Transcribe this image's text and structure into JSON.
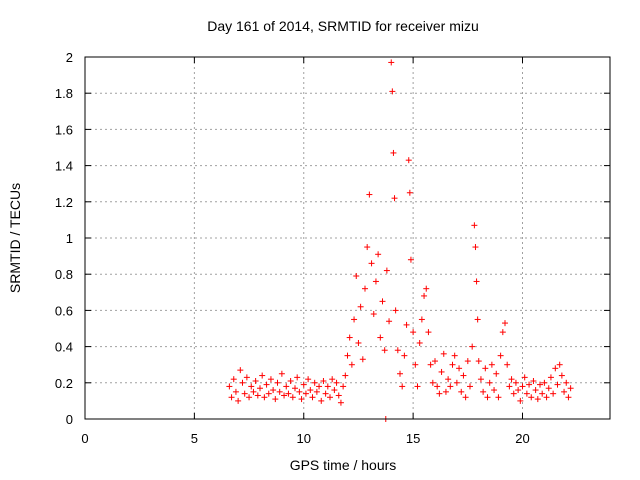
{
  "chart_data": {
    "type": "scatter",
    "title": "Day 161 of 2014, SRMTID for receiver mizu",
    "xlabel": "GPS time / hours",
    "ylabel": "SRMTID / TECUs",
    "xlim": [
      0,
      24
    ],
    "ylim": [
      0,
      2
    ],
    "xticks": [
      0,
      5,
      10,
      15,
      20
    ],
    "xtick_labels": [
      "0",
      "5",
      "10",
      "15",
      "20"
    ],
    "yticks": [
      0,
      0.2,
      0.4,
      0.6,
      0.8,
      1.0,
      1.2,
      1.4,
      1.6,
      1.8,
      2.0
    ],
    "ytick_labels": [
      "0",
      "0.2",
      "0.4",
      "0.6",
      "0.8",
      "1",
      "1.2",
      "1.4",
      "1.6",
      "1.8",
      "2"
    ],
    "grid": true,
    "marker": "+",
    "color": "#ff0000",
    "series": [
      {
        "name": "mizu",
        "points": [
          [
            6.6,
            0.18
          ],
          [
            6.7,
            0.12
          ],
          [
            6.8,
            0.22
          ],
          [
            6.9,
            0.15
          ],
          [
            7.0,
            0.1
          ],
          [
            7.1,
            0.27
          ],
          [
            7.2,
            0.2
          ],
          [
            7.3,
            0.14
          ],
          [
            7.4,
            0.23
          ],
          [
            7.5,
            0.12
          ],
          [
            7.6,
            0.18
          ],
          [
            7.7,
            0.15
          ],
          [
            7.8,
            0.21
          ],
          [
            7.9,
            0.13
          ],
          [
            8.0,
            0.17
          ],
          [
            8.1,
            0.24
          ],
          [
            8.2,
            0.12
          ],
          [
            8.3,
            0.19
          ],
          [
            8.4,
            0.14
          ],
          [
            8.5,
            0.22
          ],
          [
            8.6,
            0.16
          ],
          [
            8.7,
            0.11
          ],
          [
            8.8,
            0.2
          ],
          [
            8.9,
            0.15
          ],
          [
            9.0,
            0.25
          ],
          [
            9.1,
            0.13
          ],
          [
            9.2,
            0.18
          ],
          [
            9.3,
            0.14
          ],
          [
            9.4,
            0.21
          ],
          [
            9.5,
            0.12
          ],
          [
            9.6,
            0.17
          ],
          [
            9.7,
            0.23
          ],
          [
            9.8,
            0.15
          ],
          [
            9.9,
            0.11
          ],
          [
            10.0,
            0.19
          ],
          [
            10.1,
            0.14
          ],
          [
            10.2,
            0.22
          ],
          [
            10.3,
            0.16
          ],
          [
            10.4,
            0.12
          ],
          [
            10.5,
            0.2
          ],
          [
            10.6,
            0.15
          ],
          [
            10.7,
            0.18
          ],
          [
            10.8,
            0.1
          ],
          [
            10.9,
            0.21
          ],
          [
            11.0,
            0.14
          ],
          [
            11.1,
            0.18
          ],
          [
            11.2,
            0.12
          ],
          [
            11.3,
            0.22
          ],
          [
            11.4,
            0.16
          ],
          [
            11.5,
            0.2
          ],
          [
            11.6,
            0.13
          ],
          [
            11.7,
            0.09
          ],
          [
            11.8,
            0.18
          ],
          [
            11.9,
            0.24
          ],
          [
            12.0,
            0.35
          ],
          [
            12.1,
            0.45
          ],
          [
            12.2,
            0.3
          ],
          [
            12.3,
            0.55
          ],
          [
            12.4,
            0.79
          ],
          [
            12.5,
            0.42
          ],
          [
            12.6,
            0.62
          ],
          [
            12.7,
            0.33
          ],
          [
            12.8,
            0.72
          ],
          [
            12.9,
            0.95
          ],
          [
            13.0,
            1.24
          ],
          [
            13.1,
            0.86
          ],
          [
            13.2,
            0.58
          ],
          [
            13.3,
            0.76
          ],
          [
            13.4,
            0.91
          ],
          [
            13.5,
            0.45
          ],
          [
            13.6,
            0.65
          ],
          [
            13.7,
            0.38
          ],
          [
            13.8,
            0.82
          ],
          [
            13.9,
            0.54
          ],
          [
            14.0,
            1.97
          ],
          [
            14.05,
            1.81
          ],
          [
            14.1,
            1.47
          ],
          [
            14.15,
            1.22
          ],
          [
            14.2,
            0.6
          ],
          [
            14.3,
            0.38
          ],
          [
            14.4,
            0.25
          ],
          [
            14.5,
            0.18
          ],
          [
            14.6,
            0.35
          ],
          [
            14.7,
            0.52
          ],
          [
            14.8,
            1.43
          ],
          [
            14.85,
            1.25
          ],
          [
            14.9,
            0.88
          ],
          [
            15.0,
            0.48
          ],
          [
            15.1,
            0.3
          ],
          [
            15.2,
            0.18
          ],
          [
            15.3,
            0.42
          ],
          [
            15.4,
            0.55
          ],
          [
            15.5,
            0.68
          ],
          [
            15.6,
            0.72
          ],
          [
            15.7,
            0.48
          ],
          [
            15.8,
            0.3
          ],
          [
            15.9,
            0.2
          ],
          [
            16.0,
            0.32
          ],
          [
            16.1,
            0.18
          ],
          [
            16.2,
            0.14
          ],
          [
            16.3,
            0.26
          ],
          [
            16.4,
            0.36
          ],
          [
            16.5,
            0.15
          ],
          [
            16.6,
            0.22
          ],
          [
            16.7,
            0.18
          ],
          [
            16.8,
            0.3
          ],
          [
            16.9,
            0.35
          ],
          [
            17.0,
            0.2
          ],
          [
            17.1,
            0.28
          ],
          [
            17.2,
            0.15
          ],
          [
            17.3,
            0.24
          ],
          [
            17.4,
            0.12
          ],
          [
            17.5,
            0.32
          ],
          [
            17.6,
            0.18
          ],
          [
            17.7,
            0.4
          ],
          [
            17.8,
            1.07
          ],
          [
            17.85,
            0.95
          ],
          [
            17.9,
            0.76
          ],
          [
            17.95,
            0.55
          ],
          [
            18.0,
            0.32
          ],
          [
            18.1,
            0.22
          ],
          [
            18.2,
            0.15
          ],
          [
            18.3,
            0.28
          ],
          [
            18.4,
            0.12
          ],
          [
            18.5,
            0.2
          ],
          [
            18.6,
            0.3
          ],
          [
            18.7,
            0.16
          ],
          [
            18.8,
            0.25
          ],
          [
            18.9,
            0.12
          ],
          [
            19.0,
            0.35
          ],
          [
            19.1,
            0.48
          ],
          [
            19.2,
            0.53
          ],
          [
            19.3,
            0.3
          ],
          [
            19.4,
            0.18
          ],
          [
            19.5,
            0.22
          ],
          [
            19.6,
            0.14
          ],
          [
            19.7,
            0.2
          ],
          [
            19.8,
            0.16
          ],
          [
            19.9,
            0.1
          ],
          [
            20.0,
            0.18
          ],
          [
            20.1,
            0.23
          ],
          [
            20.2,
            0.14
          ],
          [
            20.3,
            0.19
          ],
          [
            20.4,
            0.12
          ],
          [
            20.5,
            0.21
          ],
          [
            20.6,
            0.16
          ],
          [
            20.7,
            0.11
          ],
          [
            20.8,
            0.19
          ],
          [
            20.9,
            0.14
          ],
          [
            21.0,
            0.2
          ],
          [
            21.1,
            0.12
          ],
          [
            21.2,
            0.17
          ],
          [
            21.3,
            0.23
          ],
          [
            21.4,
            0.14
          ],
          [
            21.5,
            0.28
          ],
          [
            21.6,
            0.19
          ],
          [
            21.7,
            0.3
          ],
          [
            21.8,
            0.24
          ],
          [
            21.9,
            0.15
          ],
          [
            22.0,
            0.2
          ],
          [
            22.1,
            0.12
          ],
          [
            22.2,
            0.17
          ],
          [
            13.75,
            0.0
          ]
        ]
      }
    ]
  }
}
